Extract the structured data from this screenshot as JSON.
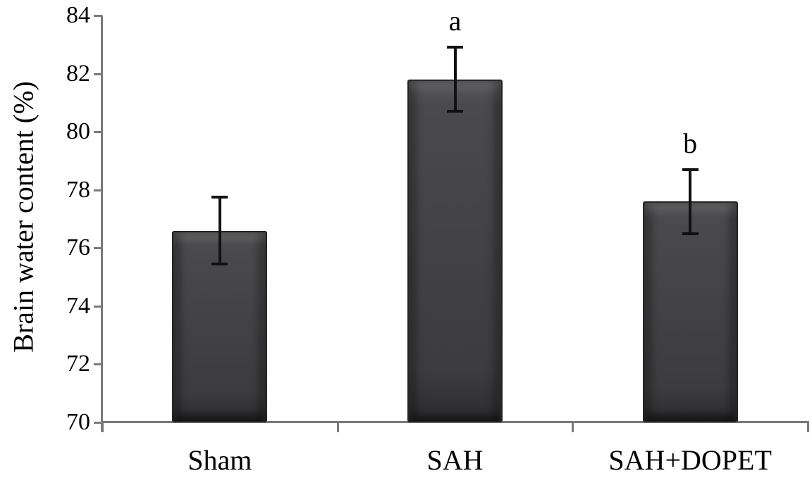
{
  "chart_data": {
    "type": "bar",
    "title": "",
    "xlabel": "",
    "ylabel": "Brain water content (%)",
    "ylim": [
      70,
      84
    ],
    "yticks": [
      70,
      72,
      74,
      76,
      78,
      80,
      82,
      84
    ],
    "categories": [
      "Sham",
      "SAH",
      "SAH+DOPET"
    ],
    "values": [
      76.6,
      81.8,
      77.6
    ],
    "errors": [
      1.15,
      1.1,
      1.1
    ],
    "sig_labels": [
      "",
      "a",
      "b"
    ],
    "grid": false,
    "legend_position": "none",
    "bar_color": "#434345",
    "axis_color": "#7a7a7a",
    "error_bar_color": "#111111",
    "text_color": "#000000"
  }
}
